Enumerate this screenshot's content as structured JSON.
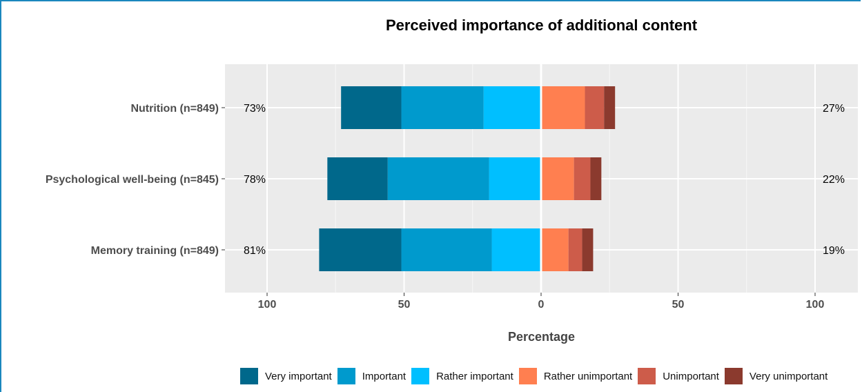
{
  "chart_data": {
    "type": "bar",
    "orientation": "diverging-horizontal",
    "title": "Perceived importance of additional content",
    "xlabel": "Percentage",
    "ylabel": "",
    "xlim": [
      -115,
      117
    ],
    "x_tick_values": [
      -100,
      -50,
      0,
      50,
      100
    ],
    "x_tick_labels": [
      "100",
      "50",
      "0",
      "50",
      "100"
    ],
    "grid": true,
    "legend_position": "bottom",
    "categories": [
      "Nutrition (n=849)",
      "Psychological well-being (n=845)",
      "Memory training (n=849)"
    ],
    "left_totals": [
      "73%",
      "78%",
      "81%"
    ],
    "right_totals": [
      "27%",
      "22%",
      "19%"
    ],
    "series": [
      {
        "name": "Very important",
        "side": "left",
        "color": "#00688b",
        "values": [
          22,
          22,
          30
        ]
      },
      {
        "name": "Important",
        "side": "left",
        "color": "#009acd",
        "values": [
          30,
          37,
          33
        ]
      },
      {
        "name": "Rather important",
        "side": "left",
        "color": "#00bfff",
        "values": [
          21,
          19,
          18
        ]
      },
      {
        "name": "Rather unimportant",
        "side": "right",
        "color": "#ff7f50",
        "values": [
          16,
          12,
          10
        ]
      },
      {
        "name": "Unimportant",
        "side": "right",
        "color": "#cd5c4a",
        "values": [
          7,
          6,
          5
        ]
      },
      {
        "name": "Very unimportant",
        "side": "right",
        "color": "#8b3a2e",
        "values": [
          4,
          4,
          4
        ]
      }
    ]
  }
}
